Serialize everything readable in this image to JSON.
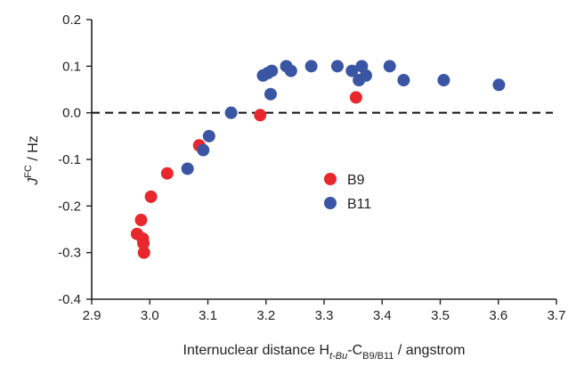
{
  "chart_data": {
    "type": "scatter",
    "xlabel": {
      "prefix": "Internuclear distance H",
      "sub1": "t-Bu",
      "mid": "-C",
      "sub2": "B9/B11",
      "suffix": " / angstrom"
    },
    "ylabel": {
      "main": "J",
      "sup": "FC",
      "suffix": " / Hz"
    },
    "xlim": [
      2.9,
      3.7
    ],
    "ylim": [
      -0.4,
      0.2
    ],
    "x_ticks": [
      "2.9",
      "3.0",
      "3.1",
      "3.2",
      "3.3",
      "3.4",
      "3.5",
      "3.6",
      "3.7"
    ],
    "y_ticks": [
      "0.2",
      "0.1",
      "0.0",
      "-0.1",
      "-0.2",
      "-0.3",
      "-0.4"
    ],
    "reference_line": {
      "y": 0.0,
      "style": "dashed"
    },
    "grid": false,
    "legend_position": "center-right",
    "series": [
      {
        "name": "B9",
        "color": "#e8282d",
        "points": [
          [
            2.978,
            -0.26
          ],
          [
            2.985,
            -0.23
          ],
          [
            2.988,
            -0.27
          ],
          [
            2.989,
            -0.28
          ],
          [
            2.99,
            -0.3
          ],
          [
            3.002,
            -0.18
          ],
          [
            3.03,
            -0.13
          ],
          [
            3.085,
            -0.07
          ],
          [
            3.19,
            -0.005
          ],
          [
            3.355,
            0.033
          ]
        ]
      },
      {
        "name": "B11",
        "color": "#3a55a4",
        "points": [
          [
            3.065,
            -0.12
          ],
          [
            3.092,
            -0.08
          ],
          [
            3.102,
            -0.05
          ],
          [
            3.14,
            0.0
          ],
          [
            3.195,
            0.08
          ],
          [
            3.203,
            0.085
          ],
          [
            3.208,
            0.04
          ],
          [
            3.21,
            0.09
          ],
          [
            3.235,
            0.1
          ],
          [
            3.243,
            0.09
          ],
          [
            3.278,
            0.1
          ],
          [
            3.323,
            0.1
          ],
          [
            3.348,
            0.09
          ],
          [
            3.36,
            0.07
          ],
          [
            3.365,
            0.1
          ],
          [
            3.372,
            0.08
          ],
          [
            3.413,
            0.1
          ],
          [
            3.437,
            0.07
          ],
          [
            3.506,
            0.07
          ],
          [
            3.601,
            0.06
          ]
        ]
      }
    ]
  }
}
